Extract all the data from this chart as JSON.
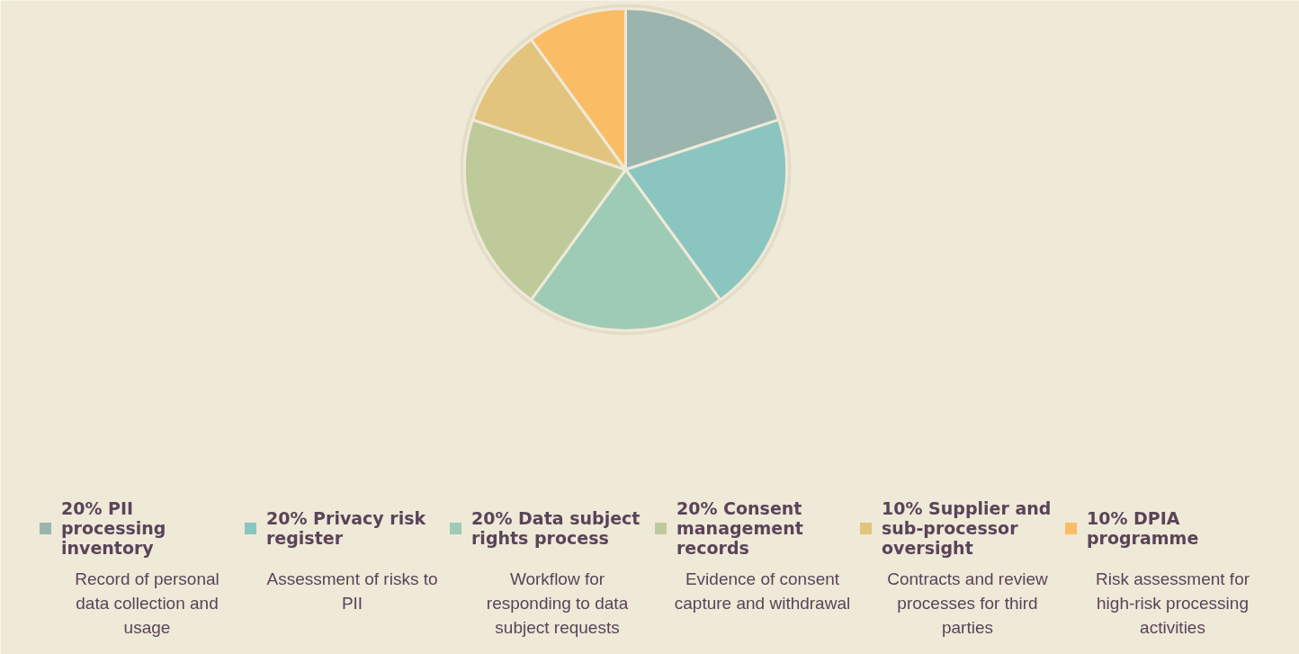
{
  "chart_data": {
    "type": "pie",
    "categories": [
      "20% PII processing inventory",
      "20% Privacy risk register",
      "20% Data subject rights process",
      "20% Consent management records",
      "10% Supplier and sub-processor oversight",
      "10% DPIA programme"
    ],
    "values": [
      20,
      20,
      20,
      20,
      10,
      10
    ],
    "colors": [
      "#9bb5ae",
      "#8bc5bf",
      "#9ecbb5",
      "#bfca9b",
      "#e2c47c",
      "#fbbc66"
    ],
    "legend": "bottom",
    "annotations": [
      "Record of personal data collection and usage",
      "Assessment of risks to PII",
      "Workflow for responding to data subject requests",
      "Evidence of consent capture and withdrawal",
      "Contracts and review processes for third parties",
      "Risk assessment for high-risk processing activities"
    ]
  }
}
